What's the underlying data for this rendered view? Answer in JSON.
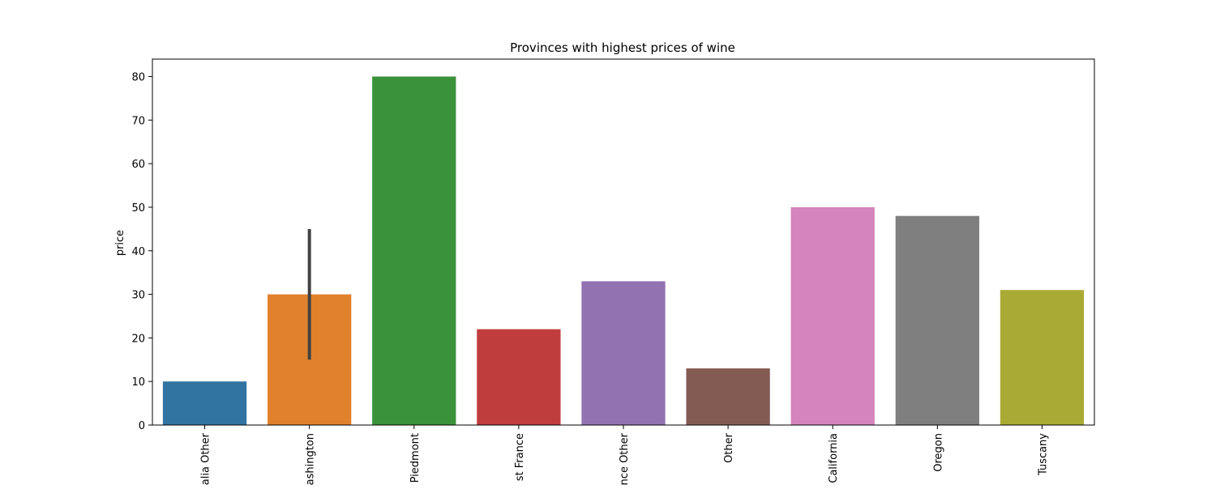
{
  "chart_data": {
    "type": "bar",
    "title": "Provinces with highest prices of wine",
    "xlabel": "",
    "ylabel": "price",
    "categories": [
      "alia Other",
      "ashington",
      "Piedmont",
      "st France",
      "nce Other",
      "Other",
      "California",
      "Oregon",
      "Tuscany"
    ],
    "values": [
      10,
      30,
      80,
      22,
      33,
      13,
      50,
      48,
      31
    ],
    "error_bars": [
      null,
      {
        "low": 15,
        "high": 45
      },
      null,
      null,
      null,
      null,
      null,
      null,
      null
    ],
    "colors": [
      "#3274a1",
      "#e1812c",
      "#3a923a",
      "#c03d3e",
      "#9372b2",
      "#845b53",
      "#d684bd",
      "#7f7f7f",
      "#a9aa35"
    ],
    "ylim": [
      0,
      84
    ],
    "yticks": [
      0,
      10,
      20,
      30,
      40,
      50,
      60,
      70,
      80
    ],
    "grid": false,
    "legend": "none"
  }
}
